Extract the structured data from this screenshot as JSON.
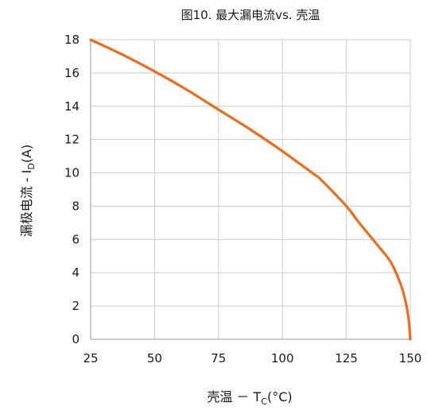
{
  "chart_data": {
    "type": "line",
    "title": "图10. 最大漏电流vs. 壳温",
    "xlabel_main": "壳温  －  T",
    "xlabel_sub": "C",
    "xlabel_tail": "(°C)",
    "ylabel_main": "漏极电流  - I",
    "ylabel_sub": "D",
    "ylabel_tail": "(A)",
    "xlim": [
      25,
      150
    ],
    "ylim": [
      0,
      18
    ],
    "xticks": [
      25,
      50,
      75,
      100,
      125,
      150
    ],
    "yticks": [
      0,
      2,
      4,
      6,
      8,
      10,
      12,
      14,
      16,
      18
    ],
    "grid": true,
    "colors": {
      "line": "#f26c18",
      "grid": "#cccccc",
      "axis": "#999999"
    },
    "series": [
      {
        "x": [
          25,
          37.5,
          50,
          62.5,
          75,
          87.5,
          100,
          112.5,
          115,
          125,
          130,
          137.5,
          142.5,
          146.5,
          148.5,
          149.5,
          150
        ],
        "values": [
          18,
          17.1,
          16.1,
          15.0,
          13.8,
          12.6,
          11.3,
          9.9,
          9.6,
          8.0,
          7.0,
          5.6,
          4.6,
          3.2,
          2.0,
          1.0,
          0
        ]
      }
    ]
  }
}
